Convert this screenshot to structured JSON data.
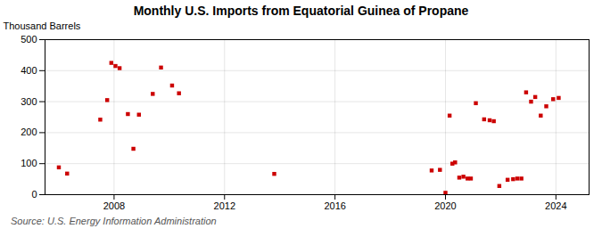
{
  "chart_data": {
    "type": "scatter",
    "title": "Monthly U.S. Imports from Equatorial Guinea of Propane",
    "ylabel": "Thousand Barrels",
    "source": "Source: U.S. Energy Information Administration",
    "color": "#cc0000",
    "marker": "square",
    "grid": true,
    "xlim": [
      2005.5,
      2025.2
    ],
    "xticks": [
      2008,
      2012,
      2016,
      2020,
      2024
    ],
    "ylim": [
      0,
      500
    ],
    "yticks": [
      0,
      100,
      200,
      300,
      400,
      500
    ],
    "x": [
      2006.0,
      2006.3,
      2007.5,
      2007.75,
      2007.9,
      2008.05,
      2008.2,
      2008.5,
      2008.7,
      2008.9,
      2009.4,
      2009.7,
      2010.1,
      2010.35,
      2013.8,
      2019.5,
      2019.8,
      2020.0,
      2020.15,
      2020.25,
      2020.35,
      2020.5,
      2020.65,
      2020.8,
      2020.92,
      2021.1,
      2021.4,
      2021.6,
      2021.75,
      2021.95,
      2022.25,
      2022.45,
      2022.6,
      2022.75,
      2022.92,
      2023.1,
      2023.25,
      2023.45,
      2023.65,
      2023.9,
      2024.1
    ],
    "values": [
      88,
      68,
      242,
      305,
      425,
      415,
      408,
      260,
      148,
      258,
      325,
      410,
      352,
      327,
      67,
      78,
      80,
      6,
      255,
      100,
      104,
      55,
      58,
      52,
      52,
      295,
      243,
      240,
      237,
      28,
      48,
      50,
      52,
      52,
      330,
      300,
      315,
      255,
      285,
      308,
      312
    ]
  }
}
